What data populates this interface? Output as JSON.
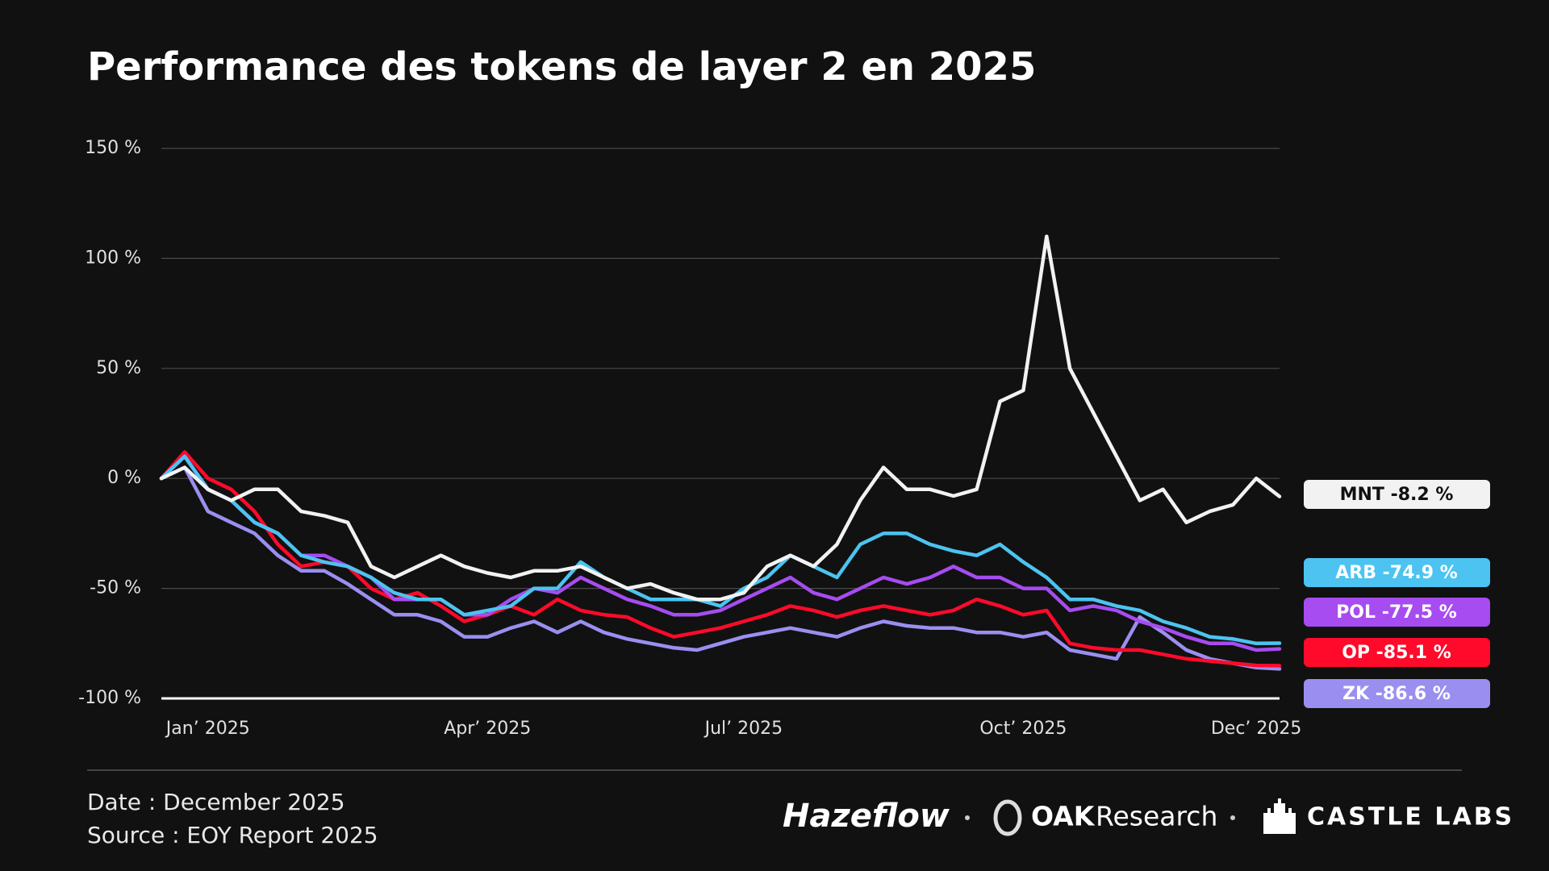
{
  "chart_data": {
    "type": "line",
    "title": "Performance des tokens de layer 2 en 2025",
    "categories": [
      null,
      null,
      "Jan’ 2025",
      null,
      null,
      null,
      null,
      null,
      null,
      null,
      null,
      null,
      null,
      null,
      "Apr’ 2025",
      null,
      null,
      null,
      null,
      null,
      null,
      null,
      null,
      null,
      null,
      "Jul’ 2025",
      null,
      null,
      null,
      null,
      null,
      null,
      null,
      null,
      null,
      null,
      null,
      "Oct’ 2025",
      null,
      null,
      null,
      null,
      null,
      null,
      null,
      null,
      null,
      "Dec’ 2025",
      null
    ],
    "ylim": [
      -100,
      150
    ],
    "yticks": [
      {
        "value": 150,
        "label": "150 %"
      },
      {
        "value": 100,
        "label": "100 %"
      },
      {
        "value": 50,
        "label": "50 %"
      },
      {
        "value": 0,
        "label": "0 %"
      },
      {
        "value": -50,
        "label": "-50 %"
      },
      {
        "value": -100,
        "label": "-100 %"
      }
    ],
    "grid": true,
    "series": [
      {
        "name": "MNT",
        "label": "MNT -8.2 %",
        "color": "#f2f2f2",
        "values": [
          0,
          5,
          -5,
          -10,
          -5,
          -5,
          -15,
          -17,
          -20,
          -40,
          -45,
          -40,
          -35,
          -40,
          -43,
          -45,
          -42,
          -42,
          -40,
          -45,
          -50,
          -48,
          -52,
          -55,
          -55,
          -52,
          -40,
          -35,
          -40,
          -30,
          -10,
          5,
          -5,
          -5,
          -8,
          -5,
          35,
          40,
          110,
          50,
          30,
          10,
          -10,
          -5,
          -20,
          -15,
          -12,
          0,
          -8.2
        ]
      },
      {
        "name": "ARB",
        "label": "ARB -74.9 %",
        "color": "#4cc3f0",
        "values": [
          0,
          10,
          -5,
          -10,
          -20,
          -25,
          -35,
          -38,
          -40,
          -45,
          -52,
          -55,
          -55,
          -62,
          -60,
          -58,
          -50,
          -50,
          -38,
          -45,
          -50,
          -55,
          -55,
          -55,
          -58,
          -50,
          -45,
          -35,
          -40,
          -45,
          -30,
          -25,
          -25,
          -30,
          -33,
          -35,
          -30,
          -38,
          -45,
          -55,
          -55,
          -58,
          -60,
          -65,
          -68,
          -72,
          -73,
          -75,
          -74.9
        ]
      },
      {
        "name": "POL",
        "label": "POL -77.5 %",
        "color": "#a64cf0",
        "values": [
          0,
          10,
          -5,
          -10,
          -20,
          -25,
          -35,
          -35,
          -40,
          -45,
          -55,
          -55,
          -55,
          -62,
          -62,
          -55,
          -50,
          -52,
          -45,
          -50,
          -55,
          -58,
          -62,
          -62,
          -60,
          -55,
          -50,
          -45,
          -52,
          -55,
          -50,
          -45,
          -48,
          -45,
          -40,
          -45,
          -45,
          -50,
          -50,
          -60,
          -58,
          -60,
          -65,
          -68,
          -72,
          -75,
          -75,
          -78,
          -77.5
        ]
      },
      {
        "name": "OP",
        "label": "OP -85.1 %",
        "color": "#ff0a2a",
        "values": [
          0,
          12,
          0,
          -5,
          -15,
          -30,
          -40,
          -38,
          -40,
          -50,
          -55,
          -52,
          -58,
          -65,
          -62,
          -58,
          -62,
          -55,
          -60,
          -62,
          -63,
          -68,
          -72,
          -70,
          -68,
          -65,
          -62,
          -58,
          -60,
          -63,
          -60,
          -58,
          -60,
          -62,
          -60,
          -55,
          -58,
          -62,
          -60,
          -75,
          -77,
          -78,
          -78,
          -80,
          -82,
          -83,
          -84,
          -85,
          -85.1
        ]
      },
      {
        "name": "ZK",
        "label": "ZK -86.6 %",
        "color": "#9a8ff0",
        "values": [
          0,
          5,
          -15,
          -20,
          -25,
          -35,
          -42,
          -42,
          -48,
          -55,
          -62,
          -62,
          -65,
          -72,
          -72,
          -68,
          -65,
          -70,
          -65,
          -70,
          -73,
          -75,
          -77,
          -78,
          -75,
          -72,
          -70,
          -68,
          -70,
          -72,
          -68,
          -65,
          -67,
          -68,
          -68,
          -70,
          -70,
          -72,
          -70,
          -78,
          -80,
          -82,
          -63,
          -70,
          -78,
          -82,
          -84,
          -86,
          -86.6
        ]
      }
    ]
  },
  "footer": {
    "date": "Date : December 2025",
    "source": "Source : EOY Report 2025",
    "logos": [
      "Hazeflow",
      "OAK",
      "Research",
      "CASTLE LABS"
    ]
  }
}
